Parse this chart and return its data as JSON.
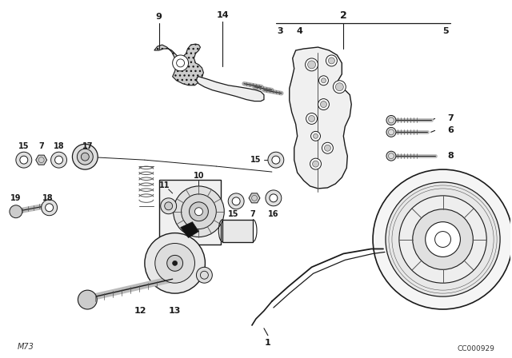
{
  "bg_color": "#ffffff",
  "fig_width": 6.4,
  "fig_height": 4.48,
  "dpi": 100,
  "bottom_left_text": "M73",
  "bottom_right_text": "CC000929",
  "lc": "#1a1a1a",
  "lc2": "#555555"
}
